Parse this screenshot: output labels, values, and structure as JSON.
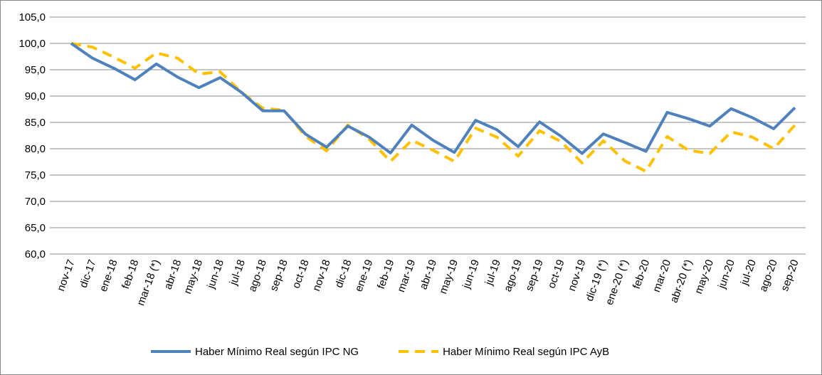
{
  "chart_data": {
    "type": "line",
    "categories": [
      "nov-17",
      "dic-17",
      "ene-18",
      "feb-18",
      "mar-18 (*)",
      "abr-18",
      "may-18",
      "jun-18",
      "jul-18",
      "ago-18",
      "sep-18",
      "oct-18",
      "nov-18",
      "dic-18",
      "ene-19",
      "feb-19",
      "mar-19",
      "abr-19",
      "may-19",
      "jun-19",
      "jul-19",
      "ago-19",
      "sep-19",
      "oct-19",
      "nov-19",
      "dic-19 (*)",
      "ene-20 (*)",
      "feb-20",
      "mar-20",
      "abr-20 (*)",
      "may-20",
      "jun-20",
      "jul-20",
      "ago-20",
      "sep-20"
    ],
    "series": [
      {
        "name": "Haber Mínimo Real según IPC NG",
        "color": "#4f81bd",
        "dash": false,
        "values": [
          100.0,
          97.2,
          95.3,
          93.1,
          96.1,
          93.6,
          91.6,
          93.5,
          90.7,
          87.2,
          87.2,
          82.8,
          80.3,
          84.3,
          82.2,
          79.2,
          84.5,
          81.6,
          79.3,
          85.4,
          83.6,
          80.4,
          85.1,
          82.4,
          79.1,
          82.8,
          81.2,
          79.5,
          86.9,
          85.7,
          84.3,
          87.6,
          85.9,
          83.8,
          87.8
        ]
      },
      {
        "name": "Haber Mínimo Real según IPC AyB",
        "color": "#ffc000",
        "dash": true,
        "values": [
          100.0,
          99.3,
          97.4,
          95.3,
          98.2,
          97.2,
          94.2,
          94.6,
          90.7,
          87.7,
          87.3,
          82.4,
          79.6,
          84.5,
          81.8,
          77.6,
          81.6,
          79.7,
          77.6,
          83.9,
          82.2,
          78.6,
          83.4,
          81.4,
          77.3,
          81.5,
          77.7,
          75.7,
          82.3,
          79.7,
          79.1,
          83.2,
          82.2,
          80.0,
          84.5
        ]
      }
    ],
    "ylim": [
      60,
      105
    ],
    "yticks": [
      {
        "value": 60,
        "label": "60,0"
      },
      {
        "value": 65,
        "label": "65,0"
      },
      {
        "value": 70,
        "label": "70,0"
      },
      {
        "value": 75,
        "label": "75,0"
      },
      {
        "value": 80,
        "label": "80,0"
      },
      {
        "value": 85,
        "label": "85,0"
      },
      {
        "value": 90,
        "label": "90,0"
      },
      {
        "value": 95,
        "label": "95,0"
      },
      {
        "value": 100,
        "label": "100,0"
      },
      {
        "value": 105,
        "label": "105,0"
      }
    ],
    "grid": true,
    "legend": "bottom"
  }
}
